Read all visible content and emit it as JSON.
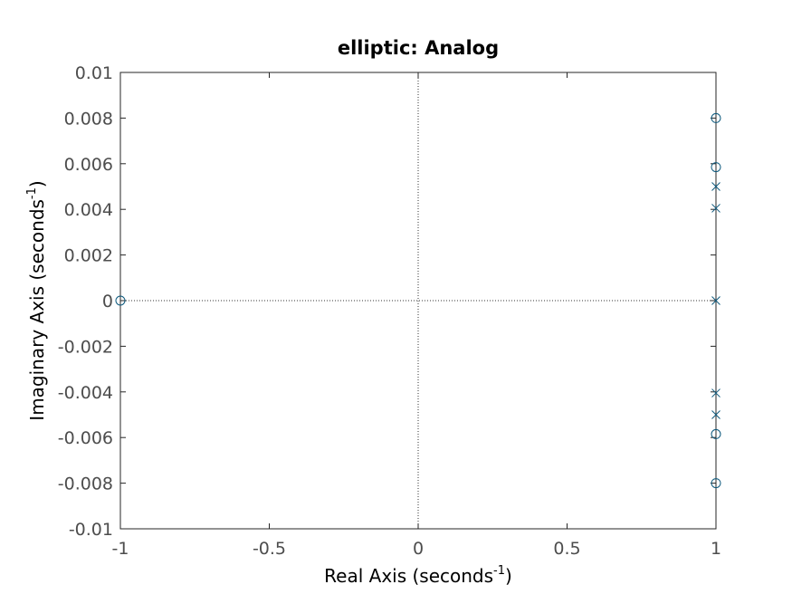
{
  "chart_data": {
    "type": "scatter",
    "title": "elliptic: Analog",
    "xlabel": {
      "main": "Real Axis (seconds",
      "sup": "-1",
      "tail": ")"
    },
    "ylabel": {
      "main": "Imaginary Axis (seconds",
      "sup": "-1",
      "tail": ")"
    },
    "xlim": [
      -1,
      1
    ],
    "ylim": [
      -0.01,
      0.01
    ],
    "xticks": [
      -1,
      -0.5,
      0,
      0.5,
      1
    ],
    "xtick_labels": [
      "-1",
      "-0.5",
      "0",
      "0.5",
      "1"
    ],
    "yticks": [
      -0.01,
      -0.008,
      -0.006,
      -0.004,
      -0.002,
      0,
      0.002,
      0.004,
      0.006,
      0.008,
      0.01
    ],
    "ytick_labels": [
      "-0.01",
      "-0.008",
      "-0.006",
      "-0.004",
      "-0.002",
      "0",
      "0.002",
      "0.004",
      "0.006",
      "0.008",
      "0.01"
    ],
    "grid": false,
    "reference_lines": {
      "x": 0,
      "y": 0,
      "style": "dotted"
    },
    "series": [
      {
        "marker": "o",
        "color": "#0e5a7e",
        "points": [
          [
            1,
            0.008
          ],
          [
            1,
            0.00585
          ],
          [
            -1,
            0
          ],
          [
            1,
            -0.00585
          ],
          [
            1,
            -0.008
          ]
        ]
      },
      {
        "marker": "x",
        "color": "#0e5a7e",
        "points": [
          [
            1,
            0.005
          ],
          [
            1,
            0.00405
          ],
          [
            1,
            0
          ],
          [
            1,
            -0.00405
          ],
          [
            1,
            -0.005
          ]
        ]
      }
    ]
  }
}
